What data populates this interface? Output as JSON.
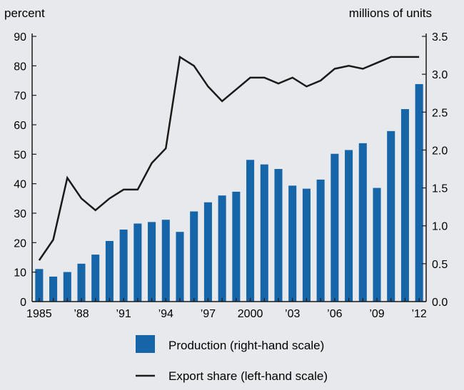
{
  "chart_data": {
    "type": "bar+line",
    "years": [
      1985,
      1986,
      1987,
      1988,
      1989,
      1990,
      1991,
      1992,
      1993,
      1994,
      1995,
      1996,
      1997,
      1998,
      1999,
      2000,
      2001,
      2002,
      2003,
      2004,
      2005,
      2006,
      2007,
      2008,
      2009,
      2010,
      2011,
      2012
    ],
    "x_tick_labels": [
      {
        "year": 1985,
        "label": "1985"
      },
      {
        "year": 1988,
        "label": "’88"
      },
      {
        "year": 1991,
        "label": "’91"
      },
      {
        "year": 1994,
        "label": "’94"
      },
      {
        "year": 1997,
        "label": "’97"
      },
      {
        "year": 2000,
        "label": "2000"
      },
      {
        "year": 2003,
        "label": "’03"
      },
      {
        "year": 2006,
        "label": "’06"
      },
      {
        "year": 2009,
        "label": "’09"
      },
      {
        "year": 2012,
        "label": "’12"
      }
    ],
    "left_axis": {
      "label": "percent",
      "ylim": [
        0,
        90
      ],
      "ticks": [
        "0",
        "10",
        "20",
        "30",
        "40",
        "50",
        "60",
        "70",
        "80",
        "90"
      ]
    },
    "right_axis": {
      "label": "millions of units",
      "ylim": [
        0,
        3.5
      ],
      "ticks": [
        "0.0",
        "0.5",
        "1.0",
        "1.5",
        "2.0",
        "2.5",
        "3.0",
        "3.5"
      ]
    },
    "series": [
      {
        "name": "Production (right-hand scale)",
        "type": "bar",
        "axis": "right",
        "color": "#1565a8",
        "values": [
          0.43,
          0.33,
          0.39,
          0.5,
          0.62,
          0.8,
          0.95,
          1.03,
          1.05,
          1.08,
          0.92,
          1.19,
          1.31,
          1.4,
          1.45,
          1.87,
          1.81,
          1.75,
          1.53,
          1.49,
          1.61,
          1.95,
          2.0,
          2.09,
          1.5,
          2.25,
          2.54,
          2.87
        ]
      },
      {
        "name": "Export share (left-hand scale)",
        "type": "line",
        "axis": "left",
        "color": "#1a1a1a",
        "values": [
          14,
          21,
          42,
          35,
          31,
          35,
          38,
          38,
          47,
          52,
          83,
          80,
          73,
          68,
          72,
          76,
          76,
          74,
          76,
          73,
          75,
          79,
          80,
          79,
          81,
          83,
          83,
          83
        ]
      }
    ]
  }
}
